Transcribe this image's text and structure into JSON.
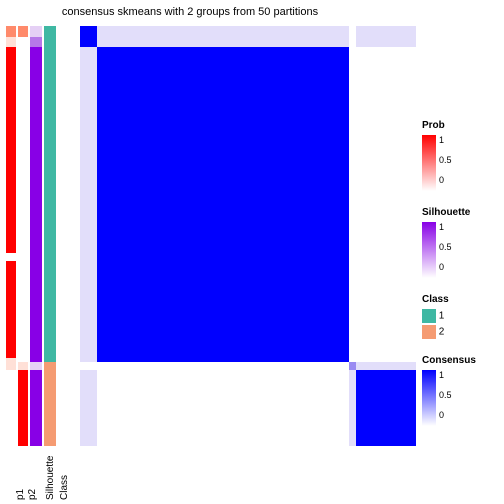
{
  "title": "consensus skmeans with 2 groups from 50 partitions",
  "title_fontsize": 12,
  "colors": {
    "prob_high": "#ff0000",
    "prob_mid": "#ff8a6b",
    "prob_low": "#ffffff",
    "prob_pale": "#ffe0d7",
    "silhouette_high": "#8800e6",
    "silhouette_mid": "#b678e8",
    "silhouette_low": "#ffffff",
    "silhouette_pale": "#e5d0f5",
    "class1": "#3fb8a3",
    "class2": "#f59b72",
    "consensus_high": "#0000ff",
    "consensus_mid": "#9a8af2",
    "consensus_low": "#ffffff",
    "consensus_pale": "#e2defa",
    "background": "#ffffff"
  },
  "annotation_columns": [
    {
      "key": "p1",
      "label": "p1",
      "wide": false,
      "segments": [
        {
          "frac": 0.025,
          "color_key": "prob_mid"
        },
        {
          "frac": 0.025,
          "color_key": "prob_pale"
        },
        {
          "frac": 0.49,
          "color_key": "prob_high"
        },
        {
          "frac": 0.02,
          "color_key": "prob_low"
        },
        {
          "frac": 0.23,
          "color_key": "prob_high"
        },
        {
          "frac": 0.03,
          "color_key": "prob_pale"
        },
        {
          "frac": 0.18,
          "color_key": "prob_low"
        }
      ]
    },
    {
      "key": "p2",
      "label": "p2",
      "wide": false,
      "segments": [
        {
          "frac": 0.025,
          "color_key": "prob_mid"
        },
        {
          "frac": 0.025,
          "color_key": "prob_low"
        },
        {
          "frac": 0.75,
          "color_key": "prob_low"
        },
        {
          "frac": 0.02,
          "color_key": "prob_pale"
        },
        {
          "frac": 0.18,
          "color_key": "prob_high"
        }
      ]
    },
    {
      "key": "silhouette",
      "label": "Silhouette",
      "wide": true,
      "segments": [
        {
          "frac": 0.025,
          "color_key": "silhouette_pale"
        },
        {
          "frac": 0.025,
          "color_key": "silhouette_mid"
        },
        {
          "frac": 0.75,
          "color_key": "silhouette_high"
        },
        {
          "frac": 0.02,
          "color_key": "silhouette_pale"
        },
        {
          "frac": 0.18,
          "color_key": "silhouette_high"
        }
      ]
    },
    {
      "key": "class",
      "label": "Class",
      "wide": true,
      "segments": [
        {
          "frac": 0.8,
          "color_key": "class1"
        },
        {
          "frac": 0.2,
          "color_key": "class2"
        }
      ]
    }
  ],
  "heatmap": {
    "block_fracs": [
      0.05,
      0.75,
      0.02,
      0.18
    ],
    "cell_color_keys": [
      [
        "consensus_high",
        "consensus_pale",
        "consensus_low",
        "consensus_pale"
      ],
      [
        "consensus_pale",
        "consensus_high",
        "consensus_low",
        "consensus_low"
      ],
      [
        "consensus_low",
        "consensus_low",
        "consensus_mid",
        "consensus_pale"
      ],
      [
        "consensus_pale",
        "consensus_low",
        "consensus_pale",
        "consensus_high"
      ]
    ]
  },
  "legends": [
    {
      "title": "Prob",
      "type": "gradient",
      "from_key": "prob_low",
      "to_key": "prob_high",
      "ticks": [
        {
          "pos": 0,
          "label": "1"
        },
        {
          "pos": 0.5,
          "label": "0.5"
        },
        {
          "pos": 1,
          "label": "0"
        }
      ]
    },
    {
      "title": "Silhouette",
      "type": "gradient",
      "from_key": "silhouette_low",
      "to_key": "silhouette_high",
      "ticks": [
        {
          "pos": 0,
          "label": "1"
        },
        {
          "pos": 0.5,
          "label": "0.5"
        },
        {
          "pos": 1,
          "label": "0"
        }
      ]
    },
    {
      "title": "Class",
      "type": "discrete",
      "items": [
        {
          "color_key": "class1",
          "label": "1"
        },
        {
          "color_key": "class2",
          "label": "2"
        }
      ]
    },
    {
      "title": "Consensus",
      "type": "gradient",
      "from_key": "consensus_low",
      "to_key": "consensus_high",
      "ticks": [
        {
          "pos": 0,
          "label": "1"
        },
        {
          "pos": 0.5,
          "label": "0.5"
        },
        {
          "pos": 1,
          "label": "0"
        }
      ]
    }
  ]
}
